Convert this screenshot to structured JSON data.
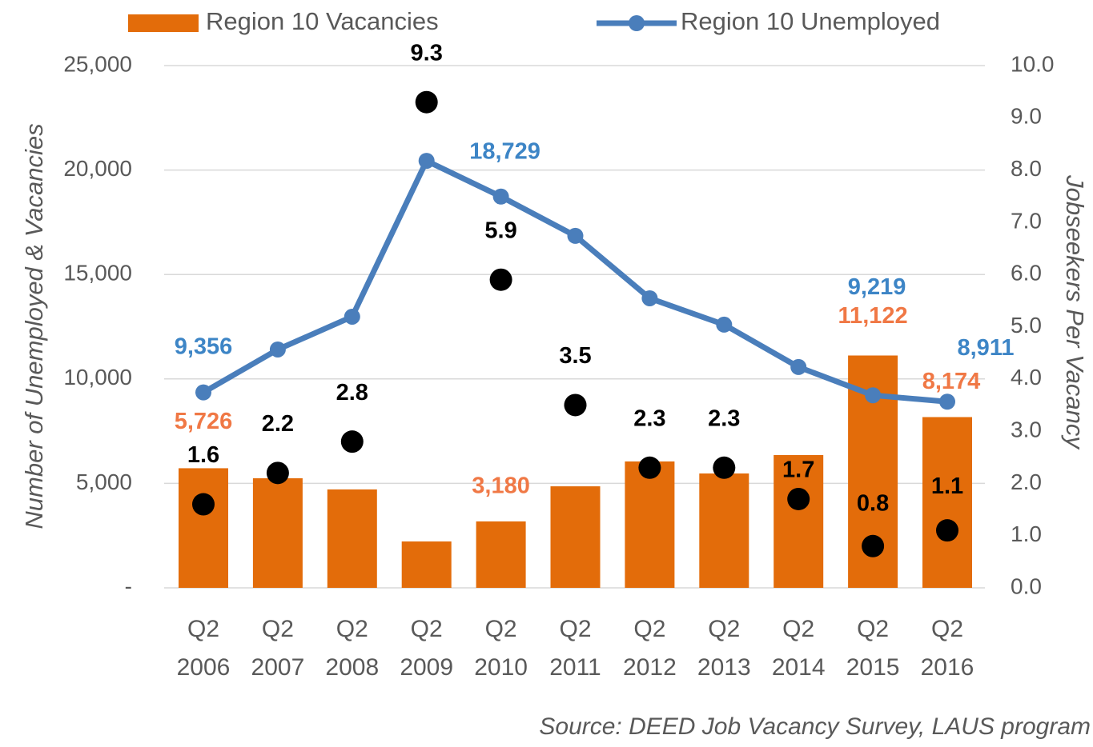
{
  "chart_data": {
    "type": "bar-line",
    "categories": [
      [
        "Q2",
        "2006"
      ],
      [
        "Q2",
        "2007"
      ],
      [
        "Q2",
        "2008"
      ],
      [
        "Q2",
        "2009"
      ],
      [
        "Q2",
        "2010"
      ],
      [
        "Q2",
        "2011"
      ],
      [
        "Q2",
        "2012"
      ],
      [
        "Q2",
        "2013"
      ],
      [
        "Q2",
        "2014"
      ],
      [
        "Q2",
        "2015"
      ],
      [
        "Q2",
        "2016"
      ]
    ],
    "series": [
      {
        "name": "Region 10 Vacancies",
        "type": "bar",
        "color": "#e36c0a",
        "label_color": "#f07845",
        "values": [
          5726,
          5245,
          4710,
          2220,
          3180,
          4860,
          6050,
          5475,
          6355,
          11122,
          8174
        ],
        "value_labels": [
          "5,726",
          null,
          null,
          null,
          "3,180",
          null,
          null,
          null,
          null,
          "11,122",
          "8,174"
        ]
      },
      {
        "name": "Region 10 Unemployed",
        "type": "line",
        "color": "#4a7ebb",
        "label_color": "#3d85c6",
        "values": [
          9356,
          11410,
          12980,
          20440,
          18729,
          16850,
          13860,
          12600,
          10570,
          9219,
          8911
        ],
        "value_labels": [
          "9,356",
          null,
          null,
          null,
          "18,729",
          null,
          null,
          null,
          null,
          "9,219",
          "8,911"
        ]
      }
    ],
    "ratio": {
      "type": "scatter",
      "axis": "y2",
      "color": "#000000",
      "values": [
        1.6,
        2.2,
        2.8,
        9.3,
        5.9,
        3.5,
        2.3,
        2.3,
        1.7,
        0.8,
        1.1
      ]
    },
    "ylabel": "Number of Unemployed & Vacancies",
    "y2label": "Jobseekers Per Vacancy",
    "ylim": [
      0,
      25000
    ],
    "yticks": [
      {
        "value": 0,
        "label": "-"
      },
      {
        "value": 5000,
        "label": "5,000"
      },
      {
        "value": 10000,
        "label": "10,000"
      },
      {
        "value": 15000,
        "label": "15,000"
      },
      {
        "value": 20000,
        "label": "20,000"
      },
      {
        "value": 25000,
        "label": "25,000"
      }
    ],
    "y2lim": [
      0,
      10
    ],
    "y2ticks": [
      {
        "value": 0,
        "label": "0.0"
      },
      {
        "value": 1,
        "label": "1.0"
      },
      {
        "value": 2,
        "label": "2.0"
      },
      {
        "value": 3,
        "label": "3.0"
      },
      {
        "value": 4,
        "label": "4.0"
      },
      {
        "value": 5,
        "label": "5.0"
      },
      {
        "value": 6,
        "label": "6.0"
      },
      {
        "value": 7,
        "label": "7.0"
      },
      {
        "value": 8,
        "label": "8.0"
      },
      {
        "value": 9,
        "label": "9.0"
      },
      {
        "value": 10,
        "label": "10.0"
      }
    ],
    "grid": true,
    "legend": "top",
    "source": "Source: DEED Job Vacancy Survey, LAUS program"
  }
}
